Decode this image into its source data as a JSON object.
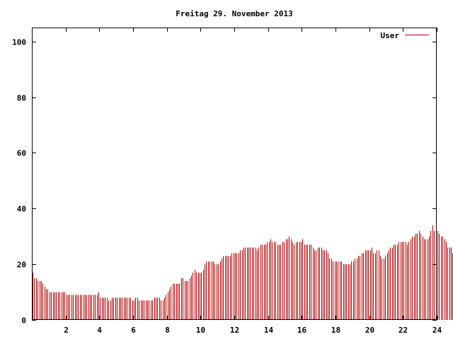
{
  "chart_data": {
    "type": "bar",
    "title": "Freitag 29. November 2013",
    "xlabel": "",
    "ylabel": "",
    "xlim": [
      0,
      24
    ],
    "ylim": [
      0,
      105
    ],
    "x_ticks": [
      2,
      4,
      6,
      8,
      10,
      12,
      14,
      16,
      18,
      20,
      22,
      24
    ],
    "y_ticks": [
      0,
      20,
      40,
      60,
      80,
      100
    ],
    "grid": false,
    "legend_position": "top-right",
    "series": [
      {
        "name": "User",
        "color": "#b00000",
        "interval_hours": 0.1,
        "values": [
          17,
          15,
          15,
          14,
          14,
          14,
          13,
          12,
          11,
          11,
          10,
          10,
          10,
          10,
          10,
          10,
          10,
          10,
          10,
          10,
          9,
          9,
          9,
          9,
          9,
          9,
          9,
          9,
          9,
          9,
          9,
          9,
          9,
          9,
          9,
          9,
          9,
          9,
          9,
          10,
          8,
          8,
          8,
          8,
          8,
          7,
          7,
          8,
          8,
          8,
          8,
          8,
          8,
          8,
          8,
          8,
          8,
          8,
          8,
          7,
          7,
          8,
          8,
          7,
          7,
          7,
          7,
          7,
          7,
          7,
          7,
          7,
          8,
          8,
          8,
          8,
          7,
          7,
          8,
          9,
          10,
          11,
          12,
          13,
          13,
          13,
          13,
          13,
          15,
          15,
          14,
          14,
          14,
          15,
          16,
          17,
          18,
          17,
          17,
          17,
          17,
          18,
          20,
          21,
          21,
          21,
          21,
          21,
          20,
          20,
          20,
          21,
          22,
          23,
          23,
          23,
          23,
          23,
          24,
          24,
          24,
          24,
          24,
          25,
          25,
          26,
          26,
          26,
          26,
          26,
          26,
          26,
          26,
          25,
          26,
          27,
          27,
          27,
          27,
          28,
          28,
          29,
          28,
          28,
          28,
          27,
          27,
          27,
          28,
          28,
          29,
          29,
          30,
          29,
          28,
          27,
          28,
          28,
          28,
          28,
          29,
          27,
          27,
          27,
          27,
          27,
          26,
          25,
          25,
          26,
          26,
          26,
          25,
          25,
          25,
          24,
          22,
          22,
          21,
          21,
          21,
          21,
          21,
          21,
          20,
          20,
          20,
          20,
          20,
          21,
          21,
          22,
          22,
          23,
          23,
          24,
          24,
          25,
          25,
          25,
          25,
          26,
          24,
          24,
          25,
          25,
          23,
          22,
          22,
          23,
          24,
          25,
          26,
          26,
          27,
          27,
          27,
          28,
          28,
          28,
          28,
          28,
          27,
          28,
          29,
          30,
          30,
          31,
          31,
          32,
          31,
          30,
          29,
          29,
          29,
          30,
          32,
          34,
          32,
          32,
          32,
          31,
          30,
          30,
          29,
          28,
          26,
          26,
          26,
          24,
          24,
          24
        ]
      }
    ]
  }
}
